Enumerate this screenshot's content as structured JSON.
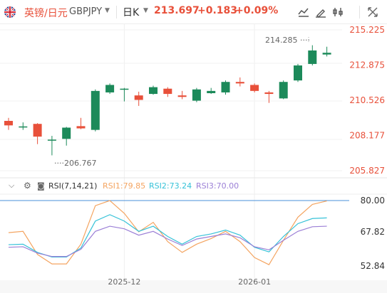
{
  "header": {
    "symbol_cn": "英镑/日元",
    "symbol_code": "GBPJPY",
    "period": "日K",
    "price": "213.697",
    "change": "+0.183",
    "change_pct": "+0.09%",
    "up_color": "#e8503a",
    "down_color": "#1c8a5a",
    "icons": [
      "chart-type-icon",
      "draw-icon",
      "indicator-icon",
      "fullscreen-icon"
    ]
  },
  "price_axis": [
    "215.225",
    "212.875",
    "210.526",
    "208.177",
    "205.827"
  ],
  "high_label": "214.285",
  "low_label": "206.767",
  "time_axis": [
    "2025-12",
    "2026-01"
  ],
  "rsi": {
    "title": "RSI(7,14,21)",
    "rsi1": "RSI1:79.85",
    "rsi2": "RSI2:73.24",
    "rsi3": "RSI3:70.00",
    "rsi1_color": "#f4a460",
    "rsi2_color": "#36c2d8",
    "rsi3_color": "#9b7fd6",
    "axis_labels": [
      "80.00",
      "67.82",
      "52.84"
    ]
  },
  "chart_data": {
    "type": "candlestick",
    "y_range": [
      205.827,
      215.225
    ],
    "candles": [
      {
        "o": 209.15,
        "h": 209.35,
        "l": 208.55,
        "c": 208.85
      },
      {
        "o": 208.75,
        "h": 209.05,
        "l": 208.55,
        "c": 208.78
      },
      {
        "o": 208.95,
        "h": 209.0,
        "l": 207.6,
        "c": 208.1
      },
      {
        "o": 207.85,
        "h": 208.15,
        "l": 206.85,
        "c": 207.9
      },
      {
        "o": 207.95,
        "h": 208.75,
        "l": 207.5,
        "c": 208.7
      },
      {
        "o": 208.8,
        "h": 209.35,
        "l": 208.6,
        "c": 208.65
      },
      {
        "o": 208.55,
        "h": 211.25,
        "l": 208.45,
        "c": 211.15
      },
      {
        "o": 211.05,
        "h": 211.65,
        "l": 210.95,
        "c": 211.55
      },
      {
        "o": 211.3,
        "h": 211.35,
        "l": 210.45,
        "c": 211.3
      },
      {
        "o": 210.85,
        "h": 211.1,
        "l": 210.15,
        "c": 210.55
      },
      {
        "o": 210.95,
        "h": 211.5,
        "l": 210.9,
        "c": 211.4
      },
      {
        "o": 211.3,
        "h": 211.4,
        "l": 210.75,
        "c": 210.95
      },
      {
        "o": 210.85,
        "h": 211.15,
        "l": 210.6,
        "c": 210.75
      },
      {
        "o": 210.5,
        "h": 211.35,
        "l": 210.4,
        "c": 211.25
      },
      {
        "o": 211.0,
        "h": 211.35,
        "l": 210.95,
        "c": 211.15
      },
      {
        "o": 211.05,
        "h": 211.85,
        "l": 210.9,
        "c": 211.75
      },
      {
        "o": 211.75,
        "h": 212.05,
        "l": 211.45,
        "c": 211.65
      },
      {
        "o": 211.55,
        "h": 211.65,
        "l": 211.05,
        "c": 211.15
      },
      {
        "o": 211.05,
        "h": 211.15,
        "l": 210.35,
        "c": 210.95
      },
      {
        "o": 210.65,
        "h": 211.85,
        "l": 210.6,
        "c": 211.75
      },
      {
        "o": 211.85,
        "h": 212.95,
        "l": 211.75,
        "c": 212.85
      },
      {
        "o": 212.95,
        "h": 214.2,
        "l": 212.85,
        "c": 213.85
      },
      {
        "o": 213.58,
        "h": 214.1,
        "l": 213.45,
        "c": 213.697
      }
    ],
    "rsi_range": [
      52.84,
      80.0
    ],
    "rsi1": [
      67.5,
      68.0,
      59.0,
      55.3,
      55.3,
      63.0,
      78.0,
      80.0,
      75.0,
      67.82,
      71.5,
      64.0,
      59.8,
      63.0,
      65.2,
      68.0,
      64.0,
      57.8,
      55.0,
      64.5,
      73.5,
      78.5,
      79.85
    ],
    "rsi2": [
      62.8,
      63.0,
      59.8,
      58.0,
      58.0,
      61.5,
      72.0,
      74.5,
      72.0,
      68.0,
      70.0,
      66.0,
      63.0,
      66.0,
      67.0,
      68.5,
      66.5,
      61.8,
      60.0,
      66.0,
      71.0,
      73.0,
      73.24
    ],
    "rsi3": [
      61.8,
      62.0,
      59.5,
      58.2,
      58.2,
      61.0,
      68.0,
      70.0,
      69.0,
      66.5,
      68.0,
      65.0,
      62.5,
      65.0,
      66.0,
      67.0,
      65.5,
      62.0,
      60.8,
      64.5,
      68.0,
      69.8,
      70.0
    ]
  }
}
